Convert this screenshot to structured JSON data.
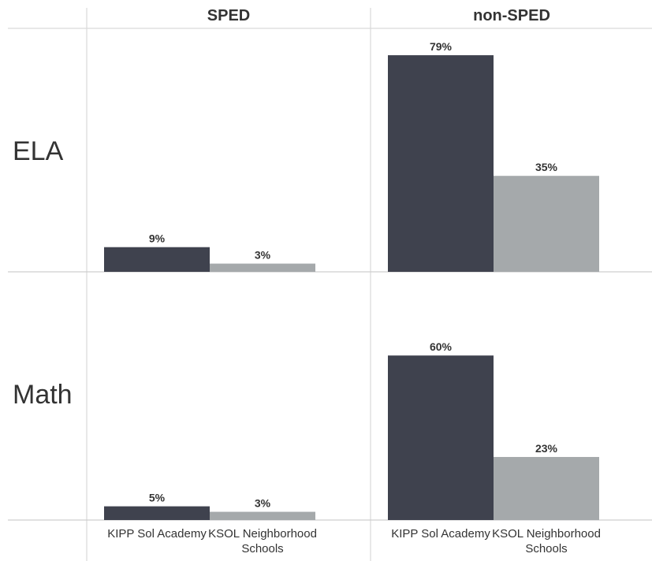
{
  "chart_data": {
    "type": "bar",
    "columns": [
      "SPED",
      "non-SPED"
    ],
    "rows": [
      "ELA",
      "Math"
    ],
    "categories": [
      "KIPP Sol Academy",
      "KSOL Neighborhood Schools"
    ],
    "category_label_lines": [
      [
        "KIPP Sol Academy"
      ],
      [
        "KSOL Neighborhood",
        "Schools"
      ]
    ],
    "colors": [
      "#3f424e",
      "#a5a9ab"
    ],
    "ylim": [
      0,
      100
    ],
    "unit": "%",
    "panels": [
      {
        "row": "ELA",
        "column": "SPED",
        "values": [
          9,
          3
        ]
      },
      {
        "row": "ELA",
        "column": "non-SPED",
        "values": [
          79,
          35
        ]
      },
      {
        "row": "Math",
        "column": "SPED",
        "values": [
          5,
          3
        ]
      },
      {
        "row": "Math",
        "column": "non-SPED",
        "values": [
          60,
          23
        ]
      }
    ],
    "gridlines": true,
    "legend": "none"
  }
}
